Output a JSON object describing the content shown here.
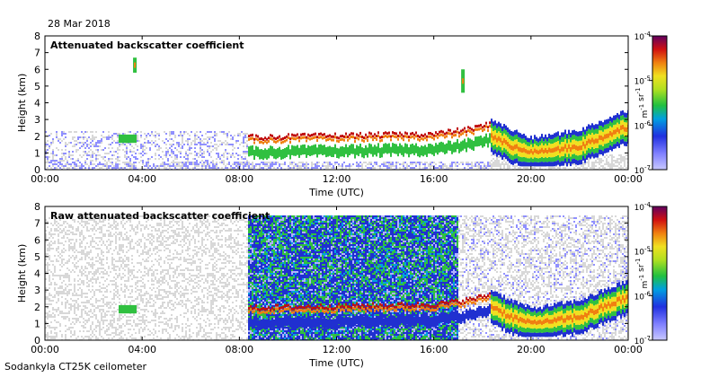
{
  "date": "28 Mar 2018",
  "footer": "Sodankyla CT25K ceilometer",
  "chart_data": [
    {
      "type": "heatmap",
      "title": "Attenuated backscatter coefficient",
      "xlabel": "Time (UTC)",
      "ylabel": "Height (km)",
      "x_ticks": [
        "00:00",
        "04:00",
        "08:00",
        "12:00",
        "16:00",
        "20:00",
        "00:00"
      ],
      "y_ticks": [
        "0",
        "1",
        "2",
        "3",
        "4",
        "5",
        "6",
        "7",
        "8"
      ],
      "xlim_hours": [
        0,
        24
      ],
      "ylim_km": [
        0,
        8
      ],
      "colorbar": {
        "label": "m-1 sr-1",
        "ticks": [
          "10-7",
          "10-6",
          "10-5",
          "10-4"
        ],
        "scale": "log",
        "range": [
          1e-07,
          0.0001
        ]
      },
      "features": {
        "boundary_layer_height_km": {
          "x": [
            0,
            3,
            8.3,
            12,
            16,
            17.5,
            18.3,
            19,
            20,
            22,
            24
          ],
          "y": [
            2.2,
            2.0,
            1.9,
            2.0,
            2.1,
            2.4,
            2.7,
            2.1,
            1.5,
            2.0,
            3.2
          ]
        },
        "cloud_top_line_km": {
          "x": [
            8.3,
            10,
            12,
            14,
            16,
            17.5,
            18.5
          ],
          "y": [
            1.9,
            1.9,
            2.0,
            2.0,
            2.1,
            2.5,
            2.7
          ]
        },
        "elevated_layers": [
          {
            "time_h": 3.7,
            "height_km": [
              5.8,
              6.7
            ]
          },
          {
            "time_h": 17.2,
            "height_km": [
              4.6,
              6.0
            ]
          }
        ]
      }
    },
    {
      "type": "heatmap",
      "title": "Raw attenuated backscatter coefficient",
      "xlabel": "Time (UTC)",
      "ylabel": "Height (km)",
      "x_ticks": [
        "00:00",
        "04:00",
        "08:00",
        "12:00",
        "16:00",
        "20:00",
        "00:00"
      ],
      "y_ticks": [
        "0",
        "1",
        "2",
        "3",
        "4",
        "5",
        "6",
        "7",
        "8"
      ],
      "xlim_hours": [
        0,
        24
      ],
      "ylim_km": [
        0,
        8
      ],
      "colorbar": {
        "label": "m-1 sr-1",
        "ticks": [
          "10-7",
          "10-6",
          "10-5",
          "10-4"
        ],
        "scale": "log",
        "range": [
          1e-07,
          0.0001
        ]
      },
      "features": {
        "noise_region_hours": [
          8.3,
          17.0
        ],
        "noise_top_km": 7.5
      }
    }
  ],
  "colors": {
    "background_noise": "#d8d8d8",
    "low": "#9090ff",
    "blue": "#2030d0",
    "green": "#30c040",
    "yellow": "#f0e020",
    "orange": "#f08010",
    "red": "#c01010",
    "dark": "#600060"
  }
}
